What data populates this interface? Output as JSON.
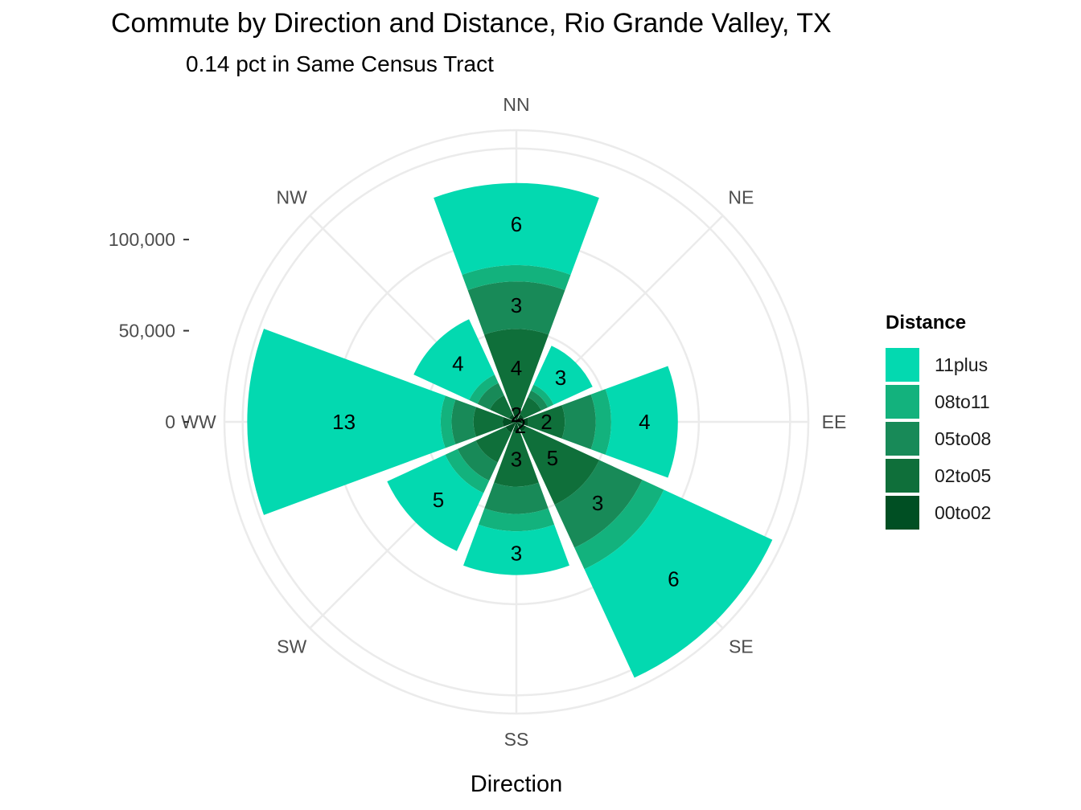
{
  "chart_data": {
    "type": "bar",
    "coord": "polar",
    "title": "Commute by Direction and Distance, Rio Grande Valley, TX",
    "subtitle": "0.14 pct in Same Census Tract",
    "xlabel": "Direction",
    "ylabel": "",
    "categories": [
      "NN",
      "NE",
      "EE",
      "SE",
      "SS",
      "SW",
      "WW",
      "NW"
    ],
    "y_ticks": [
      {
        "value": 0,
        "label": "0"
      },
      {
        "value": 50000,
        "label": "50,000"
      },
      {
        "value": 100000,
        "label": "100,000"
      }
    ],
    "ylim": [
      0,
      160000
    ],
    "grid": true,
    "legend": {
      "title": "Distance",
      "position": "right"
    },
    "stack_order": [
      "00to02",
      "02to05",
      "05to08",
      "08to11",
      "11plus"
    ],
    "series": [
      {
        "name": "00to02",
        "color": "#004f23",
        "values": [
          8000,
          4500,
          6500,
          6000,
          5500,
          6500,
          7500,
          4500
        ]
      },
      {
        "name": "02to05",
        "color": "#0f6f3a",
        "values": [
          43000,
          10500,
          20000,
          44000,
          30000,
          18000,
          16000,
          11500
        ]
      },
      {
        "name": "05to08",
        "color": "#188a58",
        "values": [
          26000,
          4000,
          17000,
          26000,
          15000,
          11000,
          12000,
          7500
        ]
      },
      {
        "name": "08to11",
        "color": "#13b27d",
        "values": [
          9000,
          3500,
          8500,
          13000,
          9500,
          7500,
          6000,
          5000
        ]
      },
      {
        "name": "11plus",
        "color": "#03d9b0",
        "values": [
          45000,
          23500,
          36500,
          65500,
          24000,
          35000,
          106000,
          33500
        ]
      }
    ],
    "bar_labels": [
      {
        "direction": "NN",
        "series": "00to02",
        "text": "2"
      },
      {
        "direction": "NN",
        "series": "02to05",
        "text": "4"
      },
      {
        "direction": "NN",
        "series": "05to08",
        "text": "3"
      },
      {
        "direction": "NN",
        "series": "11plus",
        "text": "6"
      },
      {
        "direction": "NE",
        "series": "11plus",
        "text": "3"
      },
      {
        "direction": "EE",
        "series": "02to05",
        "text": "2"
      },
      {
        "direction": "EE",
        "series": "11plus",
        "text": "4"
      },
      {
        "direction": "SE",
        "series": "00to02",
        "text": "2"
      },
      {
        "direction": "SE",
        "series": "02to05",
        "text": "5"
      },
      {
        "direction": "SE",
        "series": "05to08",
        "text": "3"
      },
      {
        "direction": "SE",
        "series": "11plus",
        "text": "6"
      },
      {
        "direction": "SS",
        "series": "02to05",
        "text": "3"
      },
      {
        "direction": "SS",
        "series": "11plus",
        "text": "3"
      },
      {
        "direction": "SW",
        "series": "11plus",
        "text": "5"
      },
      {
        "direction": "WW",
        "series": "11plus",
        "text": "13"
      },
      {
        "direction": "NW",
        "series": "11plus",
        "text": "4"
      }
    ]
  }
}
